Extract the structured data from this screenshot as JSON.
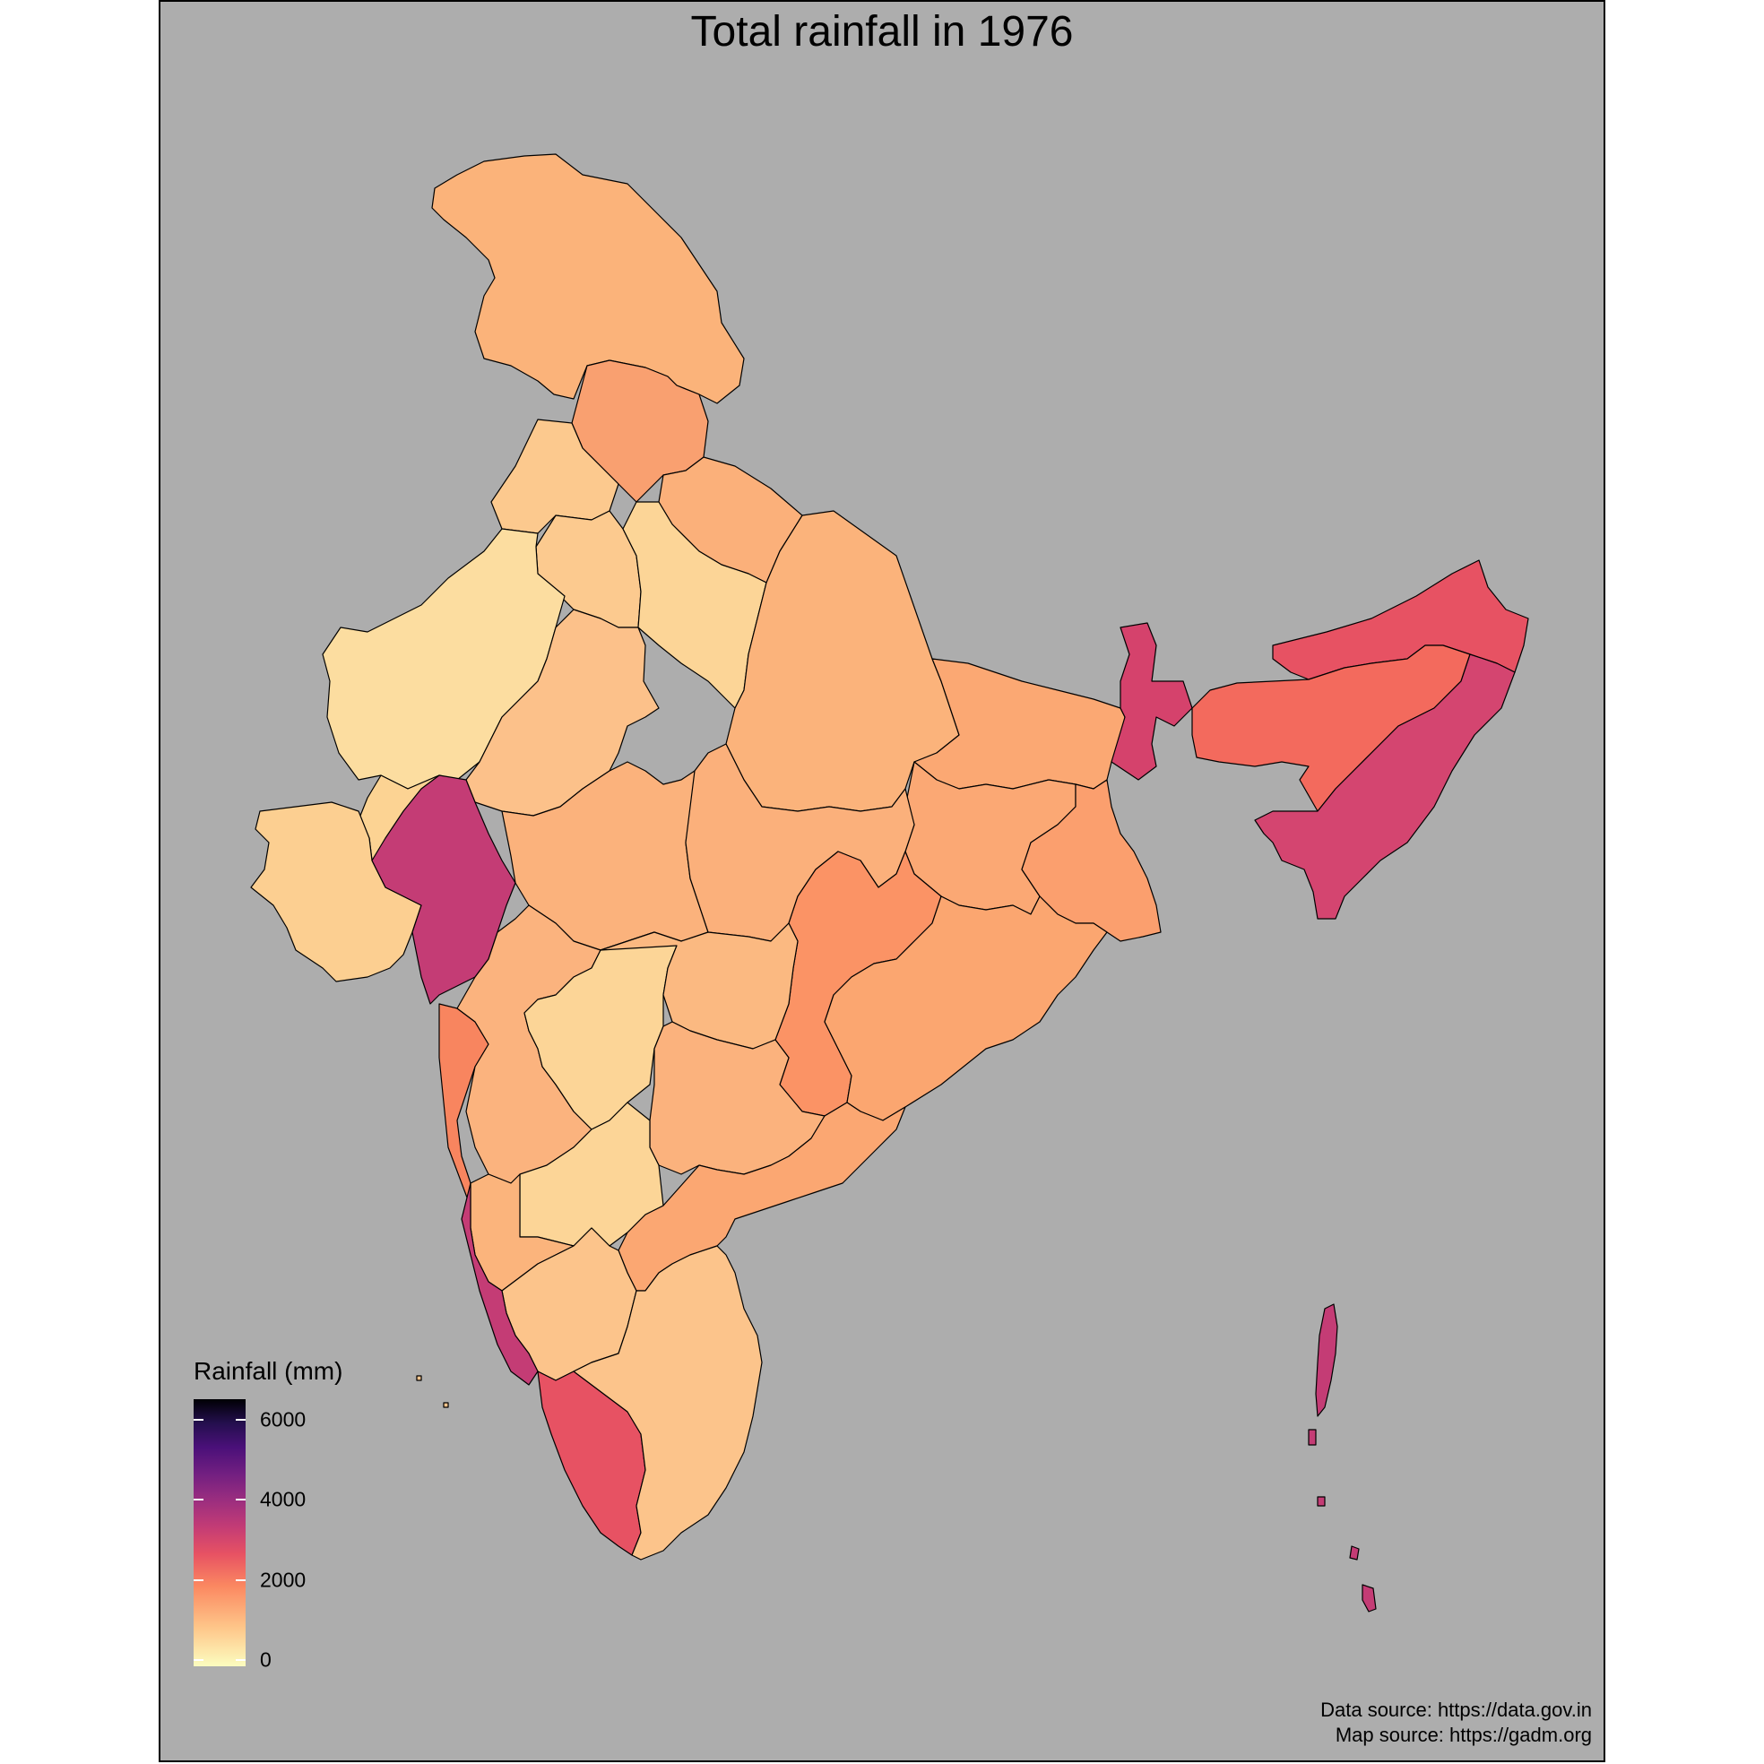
{
  "title": "Total rainfall in 1976",
  "legend": {
    "title": "Rainfall (mm)",
    "ticks": [
      "0",
      "2000",
      "4000",
      "6000"
    ]
  },
  "captions": {
    "data_source": "Data source: https://data.gov.in",
    "map_source": "Map source: https://gadm.org"
  },
  "colors": {
    "panel_background": "#adadad",
    "scale_low": "#fcfdbf",
    "scale_high": "#000004"
  },
  "regions": [
    {
      "name": "Jammu & Kashmir",
      "color": "#fbb37a"
    },
    {
      "name": "Himachal Pradesh",
      "color": "#f9a070"
    },
    {
      "name": "Punjab",
      "color": "#fcc98e"
    },
    {
      "name": "Haryana",
      "color": "#fcca8f"
    },
    {
      "name": "Uttarakhand",
      "color": "#fbb07a"
    },
    {
      "name": "Rajasthan West",
      "color": "#fcdda0"
    },
    {
      "name": "Rajasthan East",
      "color": "#fcc18a"
    },
    {
      "name": "Uttar Pradesh West",
      "color": "#fcd597"
    },
    {
      "name": "Uttar Pradesh East",
      "color": "#fbb37b"
    },
    {
      "name": "Bihar",
      "color": "#fba873"
    },
    {
      "name": "Jharkhand",
      "color": "#fba874"
    },
    {
      "name": "West Bengal",
      "color": "#fb9f6e"
    },
    {
      "name": "Sub-Himalayan West Bengal",
      "color": "#d5426c"
    },
    {
      "name": "Arunachal Pradesh",
      "color": "#e75263"
    },
    {
      "name": "Assam & Meghalaya",
      "color": "#f36a5d"
    },
    {
      "name": "Nagaland Manipur Mizoram Tripura",
      "color": "#d44570"
    },
    {
      "name": "Madhya Pradesh West",
      "color": "#fbb27c"
    },
    {
      "name": "Madhya Pradesh East",
      "color": "#fbb07b"
    },
    {
      "name": "Chhattisgarh",
      "color": "#fb9365"
    },
    {
      "name": "Odisha",
      "color": "#fba670"
    },
    {
      "name": "Gujarat",
      "color": "#fcd393"
    },
    {
      "name": "Saurashtra & Kutch",
      "color": "#fccf91"
    },
    {
      "name": "Konkan & Goa",
      "color": "#c43c75"
    },
    {
      "name": "Gujarat South",
      "color": "#f8855f"
    },
    {
      "name": "Madhya Maharashtra",
      "color": "#fbb37e"
    },
    {
      "name": "Marathwada",
      "color": "#fcd597"
    },
    {
      "name": "Vidarbha",
      "color": "#fbb981"
    },
    {
      "name": "Telangana",
      "color": "#fbb27d"
    },
    {
      "name": "Coastal Andhra Pradesh",
      "color": "#fba772"
    },
    {
      "name": "Rayalaseema",
      "color": "#fcd597"
    },
    {
      "name": "North Interior Karnataka",
      "color": "#fbb47c"
    },
    {
      "name": "South Interior Karnataka",
      "color": "#fcc48b"
    },
    {
      "name": "Coastal Karnataka",
      "color": "#c43c75"
    },
    {
      "name": "Kerala",
      "color": "#e75263"
    },
    {
      "name": "Tamil Nadu",
      "color": "#fcc48b"
    },
    {
      "name": "Andaman & Nicobar Islands",
      "color": "#c43c75"
    },
    {
      "name": "Lakshadweep",
      "color": "#fcc48b"
    }
  ]
}
